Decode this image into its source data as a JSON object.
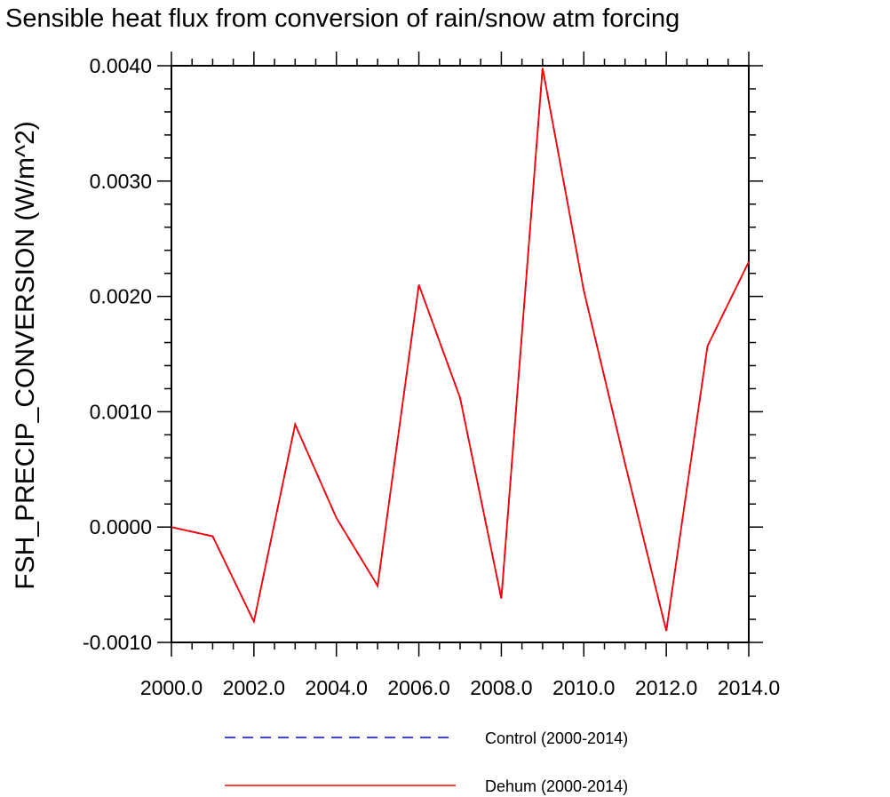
{
  "chart_data": {
    "type": "line",
    "title": "Sensible heat flux from conversion of rain/snow atm forcing",
    "xlabel": "",
    "ylabel": "FSH_PRECIP_CONVERSION  (W/m^2)",
    "xlim": [
      2000,
      2014
    ],
    "ylim": [
      -0.001,
      0.004
    ],
    "x_ticks": [
      "2000.0",
      "2002.0",
      "2004.0",
      "2006.0",
      "2008.0",
      "2010.0",
      "2012.0",
      "2014.0"
    ],
    "y_ticks": [
      "0.0040",
      "0.0030",
      "0.0020",
      "0.0010",
      "0.0000",
      "-0.0010"
    ],
    "x": [
      2000,
      2001,
      2002,
      2003,
      2004,
      2005,
      2006,
      2007,
      2008,
      2009,
      2010,
      2011,
      2012,
      2013,
      2014
    ],
    "series": [
      {
        "name": "Control (2000-2014)",
        "color": "#0000ff",
        "dash": "dashed",
        "values": [
          0.0,
          -8e-05,
          -0.00082,
          0.00089,
          8e-05,
          -0.00051,
          0.0021,
          0.00112,
          -0.00062,
          0.00398,
          0.00205,
          0.00055,
          -0.0009,
          0.00157,
          0.0023
        ]
      },
      {
        "name": "Dehum (2000-2014)",
        "color": "#ff0000",
        "dash": "solid",
        "values": [
          0.0,
          -8e-05,
          -0.00082,
          0.00089,
          8e-05,
          -0.00051,
          0.0021,
          0.00112,
          -0.00062,
          0.00398,
          0.00205,
          0.00055,
          -0.0009,
          0.00157,
          0.0023
        ]
      }
    ],
    "legend_position": "bottom",
    "grid": false
  }
}
